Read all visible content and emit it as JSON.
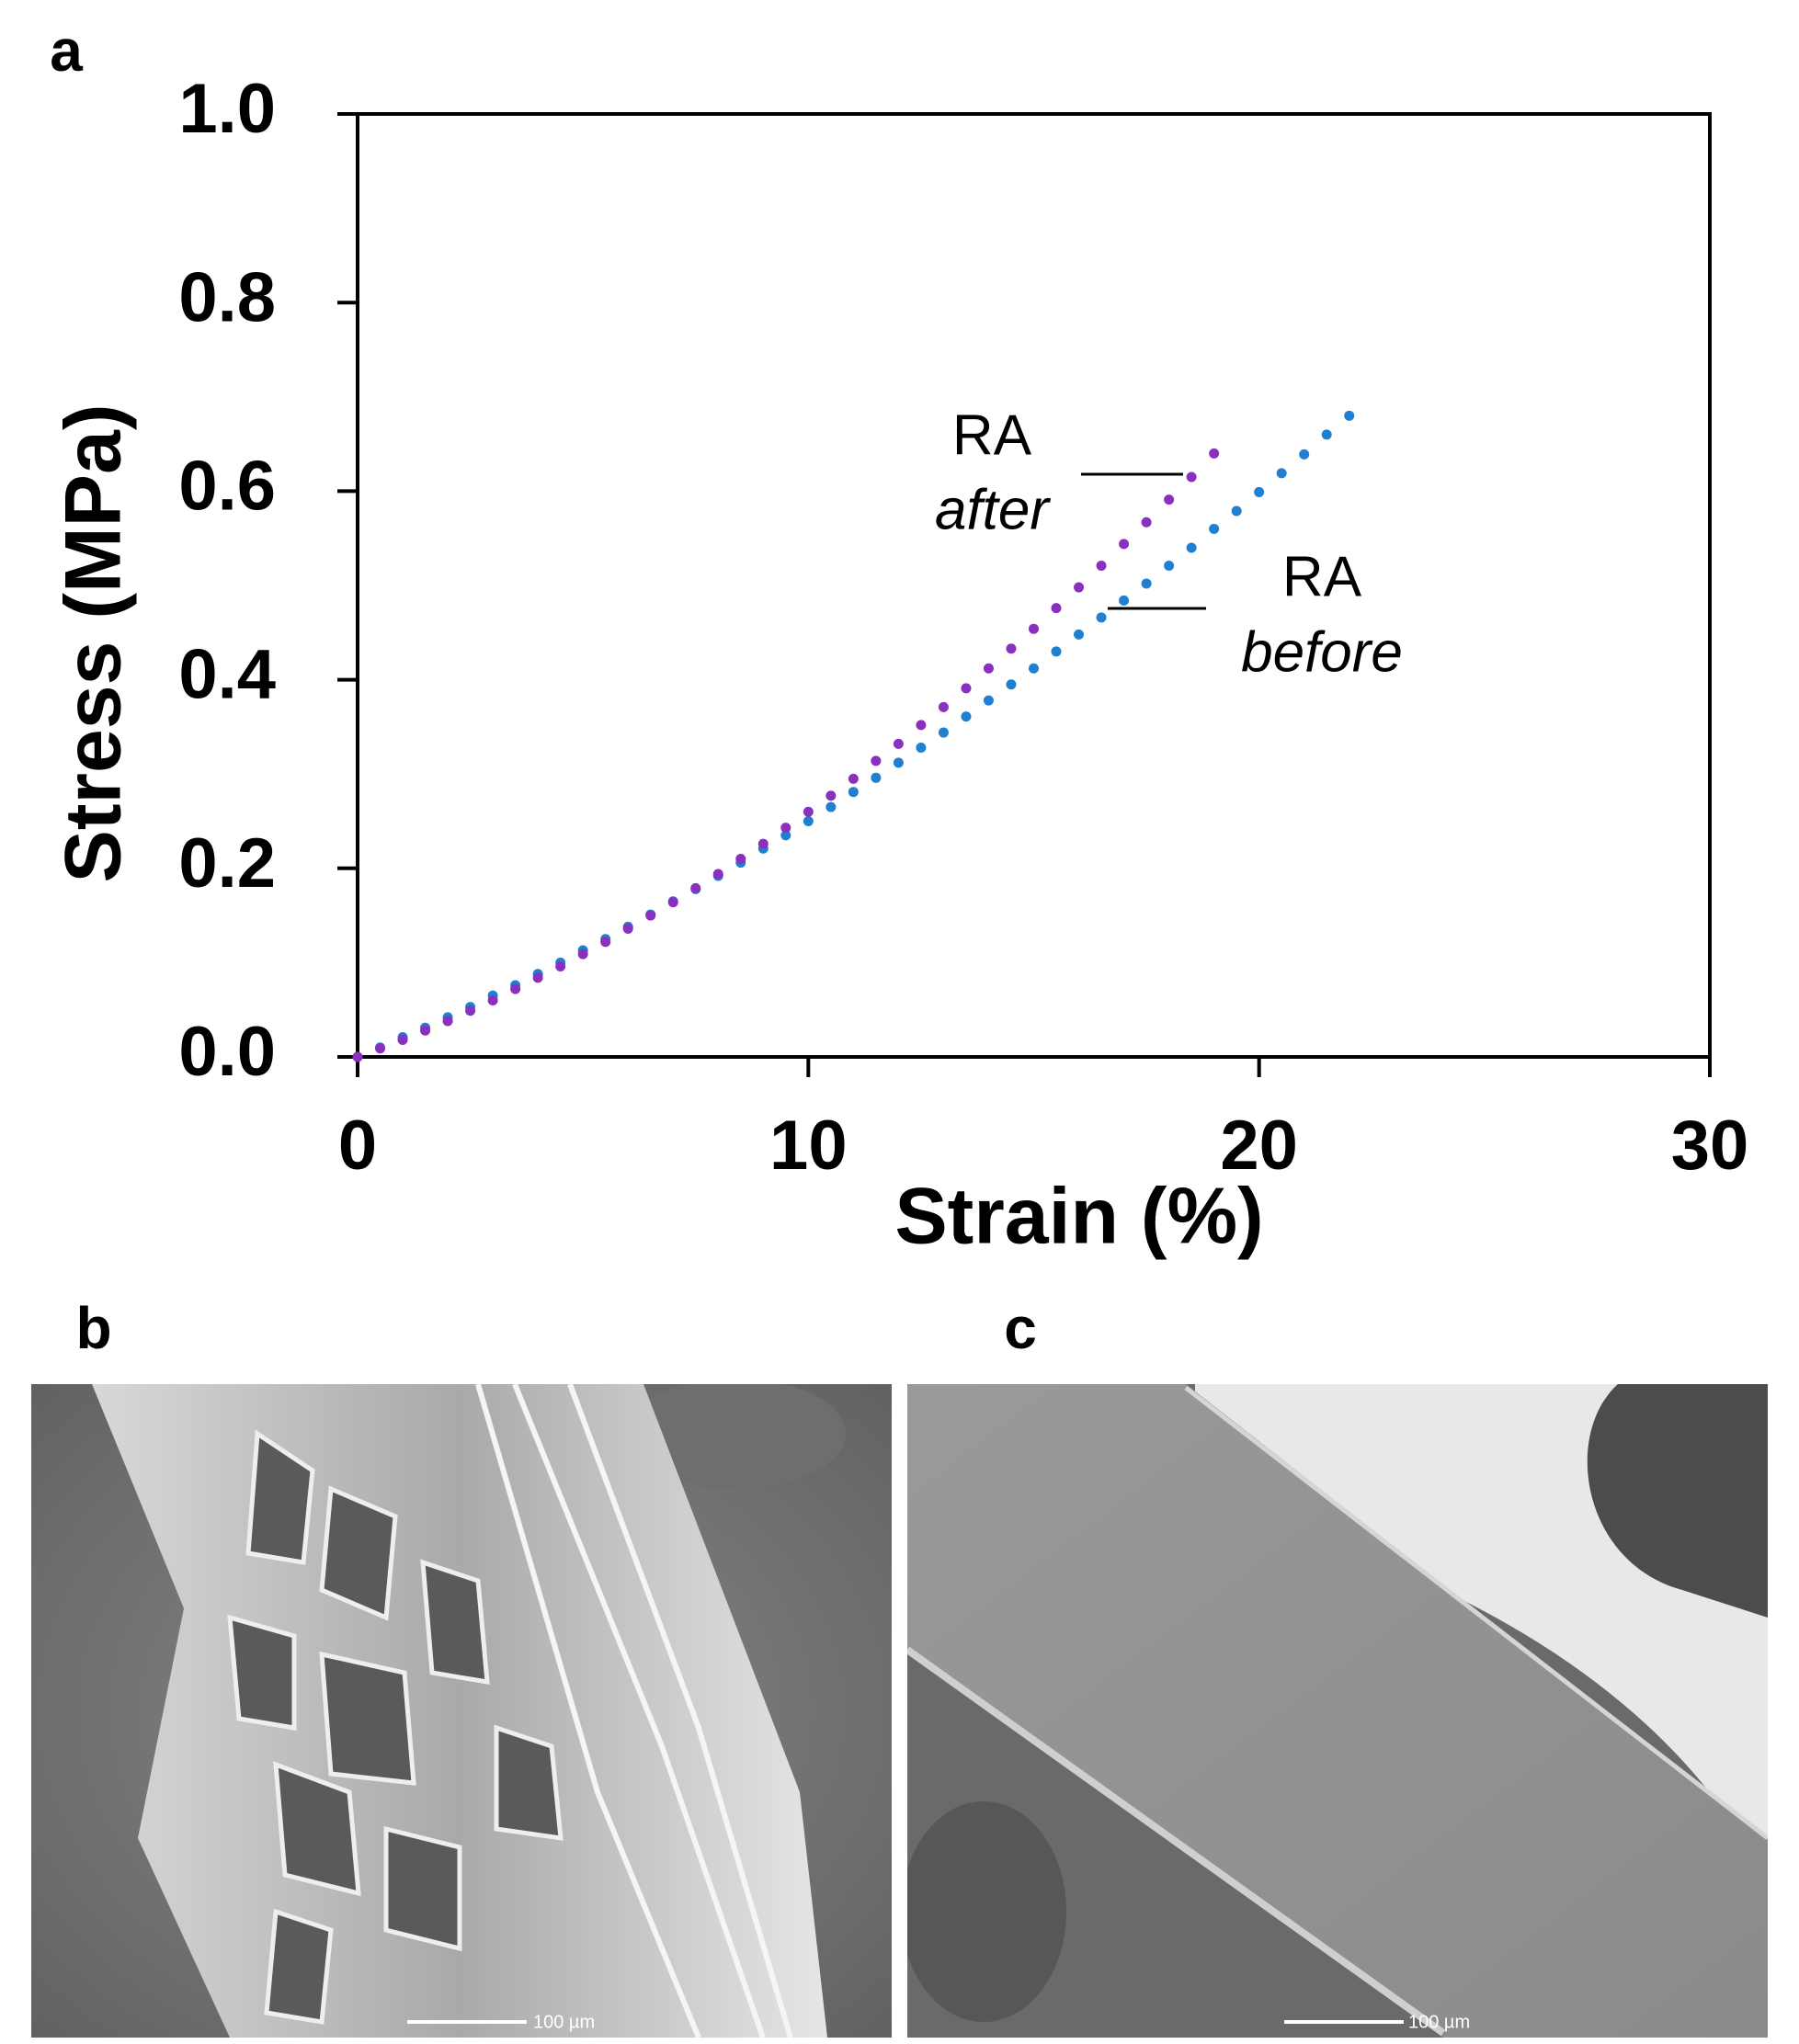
{
  "chart_data": {
    "type": "scatter",
    "panel_label": "a",
    "xlabel": "Strain (%)",
    "ylabel": "Stress (MPa)",
    "xlim": [
      0,
      30
    ],
    "xticks": [
      0,
      10,
      20,
      30
    ],
    "ylim": [
      0,
      1.0
    ],
    "yticks": [
      {
        "value": 0,
        "label": "0.0"
      },
      0.2,
      0.4,
      0.6,
      0.8,
      {
        "value": 1.0,
        "label": "1.0"
      }
    ],
    "series": [
      {
        "label": [
          "RA",
          "before"
        ],
        "color": "#1f7fd0",
        "x": [
          0,
          0.5,
          1,
          1.5,
          2,
          2.5,
          3,
          3.5,
          4,
          4.5,
          5,
          5.5,
          6,
          6.5,
          7,
          7.5,
          8,
          8.5,
          9,
          9.5,
          10,
          10.5,
          11,
          11.5,
          12,
          12.5,
          13,
          13.5,
          14,
          14.5,
          15,
          15.5,
          16,
          16.5,
          17,
          17.5,
          18,
          18.5,
          19,
          19.5,
          20,
          20.5,
          21,
          21.5,
          22
        ],
        "values": [
          0,
          0.01,
          0.021,
          0.031,
          0.042,
          0.053,
          0.065,
          0.076,
          0.088,
          0.1,
          0.113,
          0.125,
          0.138,
          0.151,
          0.165,
          0.178,
          0.192,
          0.206,
          0.221,
          0.235,
          0.25,
          0.265,
          0.281,
          0.296,
          0.312,
          0.328,
          0.344,
          0.361,
          0.378,
          0.395,
          0.412,
          0.43,
          0.448,
          0.466,
          0.484,
          0.502,
          0.521,
          0.54,
          0.56,
          0.579,
          0.599,
          0.619,
          0.639,
          0.66,
          0.68
        ]
      },
      {
        "label": [
          "RA",
          "after"
        ],
        "color": "#8b2fbe",
        "x": [
          0,
          0.5,
          1,
          1.5,
          2,
          2.5,
          3,
          3.5,
          4,
          4.5,
          5,
          5.5,
          6,
          6.5,
          7,
          7.5,
          8,
          8.5,
          9,
          9.5,
          10,
          10.5,
          11,
          11.5,
          12,
          12.5,
          13,
          13.5,
          14,
          14.5,
          15,
          15.5,
          16,
          16.5,
          17,
          17.5,
          18,
          18.5,
          19
        ],
        "values": [
          0,
          0.009,
          0.018,
          0.028,
          0.038,
          0.049,
          0.06,
          0.072,
          0.084,
          0.096,
          0.109,
          0.122,
          0.136,
          0.15,
          0.164,
          0.179,
          0.194,
          0.21,
          0.226,
          0.243,
          0.26,
          0.277,
          0.295,
          0.314,
          0.332,
          0.352,
          0.371,
          0.391,
          0.412,
          0.433,
          0.454,
          0.476,
          0.498,
          0.521,
          0.544,
          0.567,
          0.591,
          0.615,
          0.64
        ]
      }
    ]
  },
  "images": [
    {
      "panel_label": "b",
      "scale_bar": "100 µm"
    },
    {
      "panel_label": "c",
      "scale_bar": "100 µm"
    }
  ]
}
